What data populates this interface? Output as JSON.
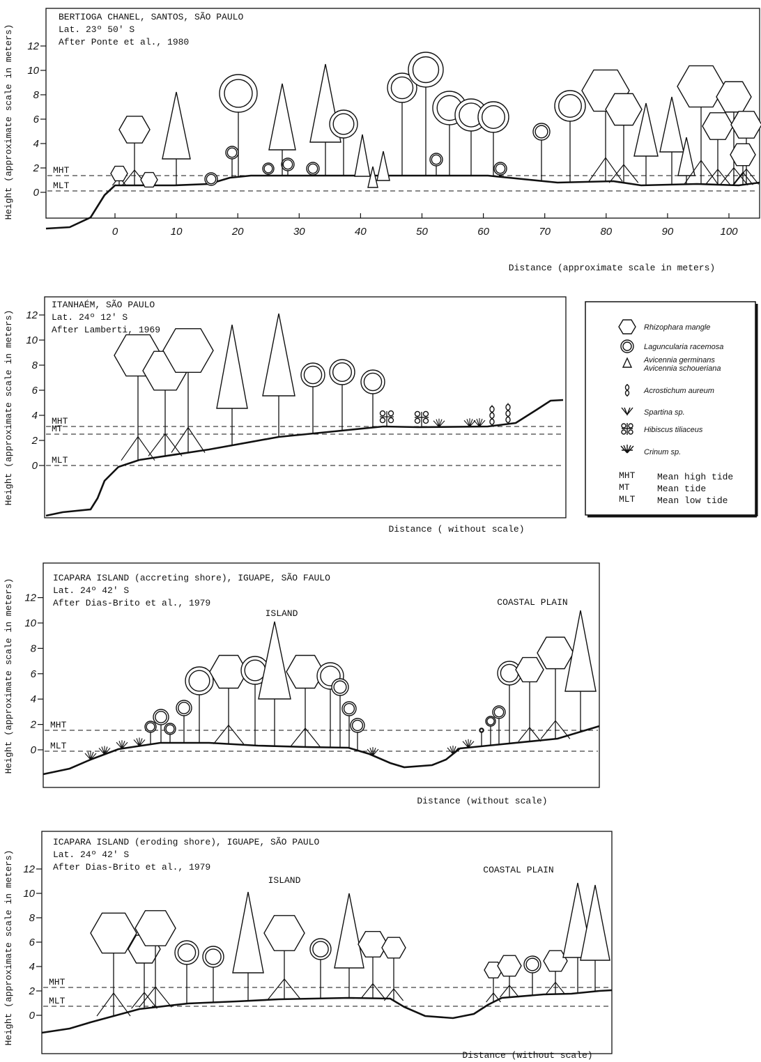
{
  "panels": [
    {
      "title": [
        "BERTIOGA CHANEL,  SANTOS, SÃO PAULO",
        "Lat. 23º 50' S",
        "After Ponte et al.,  1980"
      ],
      "y_axis_label": "Height (approximate scale in meters)",
      "yticks": [
        0,
        2,
        4,
        6,
        8,
        10,
        12
      ],
      "xticks": [
        0,
        10,
        20,
        30,
        40,
        50,
        60,
        70,
        80,
        90,
        100
      ],
      "x_axis_label": "Distance (approximate scale in meters)",
      "tide_labels": [
        "MHT",
        "MLT"
      ]
    },
    {
      "title": [
        "ITANHAÉM, SÃO PAULO",
        "Lat. 24º 12' S",
        "After Lamberti, 1969"
      ],
      "y_axis_label": "Height (approximate scale in meters)",
      "yticks": [
        0,
        2,
        4,
        6,
        8,
        10,
        12
      ],
      "x_axis_label": "Distance ( without scale)",
      "tide_labels": [
        "MHT",
        "MT",
        "MLT"
      ]
    },
    {
      "title": [
        "ICAPARA ISLAND  (accreting shore), IGUAPE, SÃO FAULO",
        "Lat. 24º 42' S",
        "After Dias-Brito  et al.,  1979"
      ],
      "y_axis_label": "Height (approximate scale in meters)",
      "yticks": [
        0,
        2,
        4,
        6,
        8,
        10,
        12
      ],
      "x_axis_label": "Distance (without scale)",
      "tide_labels": [
        "MHT",
        "MLT"
      ],
      "region_labels": [
        "ISLAND",
        "COASTAL PLAIN"
      ]
    },
    {
      "title": [
        "ICAPARA ISLAND (eroding shore),  IGUAPE,  SÃO PAULO",
        "Lat. 24º 42' S",
        "After  Dias-Brito  et al.,  1979"
      ],
      "y_axis_label": "Height (approximate scale in meters)",
      "yticks": [
        0,
        2,
        4,
        6,
        8,
        10,
        12
      ],
      "x_axis_label": "Distance (without scale)",
      "tide_labels": [
        "MHT",
        "MLT"
      ],
      "region_labels": [
        "ISLAND",
        "COASTAL PLAIN"
      ]
    }
  ],
  "legend": {
    "species": [
      "Rhizophara mangle",
      "Laguncularia racemosa",
      "Avicennia germinans",
      "Avicennia schoueriana",
      "Acrostichum aureum",
      "Spartina sp.",
      "Hibiscus tiliaceus",
      "Crinum sp."
    ],
    "abbreviations": [
      {
        "abbr": "MHT",
        "meaning": "Mean high tide"
      },
      {
        "abbr": "MT",
        "meaning": "Mean tide"
      },
      {
        "abbr": "MLT",
        "meaning": "Mean low tide"
      }
    ]
  }
}
